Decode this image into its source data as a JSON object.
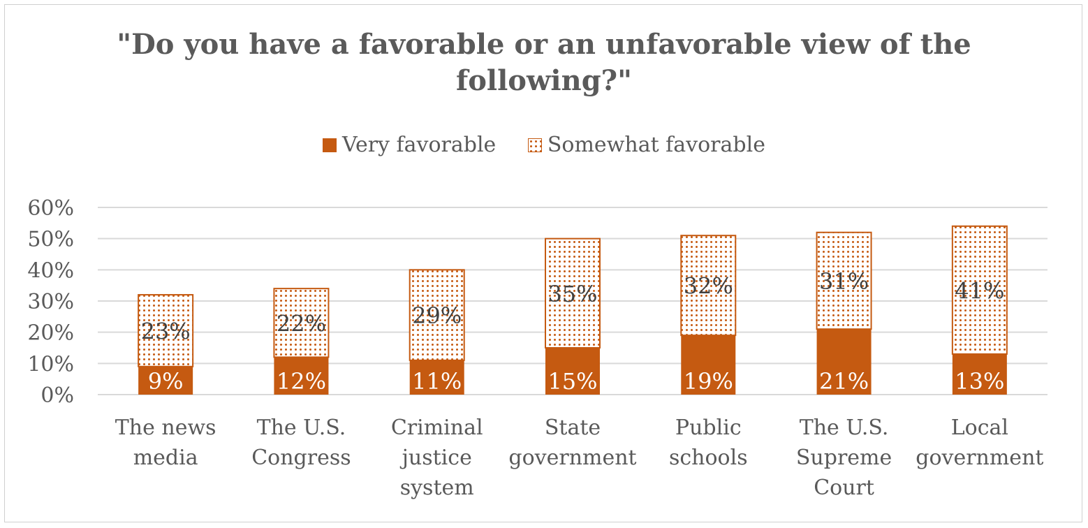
{
  "chart_data": {
    "type": "bar",
    "stacked": true,
    "title": "\"Do you have a favorable or an unfavorable view of the following?\"",
    "title_lines": [
      "\"Do you have a favorable or an unfavorable view of the",
      "following?\""
    ],
    "categories": [
      "The news media",
      "The U.S. Congress",
      "Criminal justice system",
      "State government",
      "Public schools",
      "The U.S. Supreme Court",
      "Local government"
    ],
    "category_lines": [
      [
        "The news",
        "media"
      ],
      [
        "The U.S.",
        "Congress"
      ],
      [
        "Criminal",
        "justice",
        "system"
      ],
      [
        "State",
        "government"
      ],
      [
        "Public",
        "schools"
      ],
      [
        "The U.S.",
        "Supreme",
        "Court"
      ],
      [
        "Local",
        "government"
      ]
    ],
    "series": [
      {
        "name": "Very favorable",
        "values": [
          9,
          12,
          11,
          15,
          19,
          21,
          13
        ],
        "labels": [
          "9%",
          "12%",
          "11%",
          "15%",
          "19%",
          "21%",
          "13%"
        ],
        "color": "#c55a11",
        "fill": "solid"
      },
      {
        "name": "Somewhat favorable",
        "values": [
          23,
          22,
          29,
          35,
          32,
          31,
          41
        ],
        "labels": [
          "23%",
          "22%",
          "29%",
          "35%",
          "32%",
          "31%",
          "41%"
        ],
        "color": "#c55a11",
        "fill": "dotted"
      }
    ],
    "y_ticks": [
      "0%",
      "10%",
      "20%",
      "30%",
      "40%",
      "50%",
      "60%"
    ],
    "ylim": [
      0,
      60
    ],
    "grid": true,
    "legend_position": "top"
  }
}
